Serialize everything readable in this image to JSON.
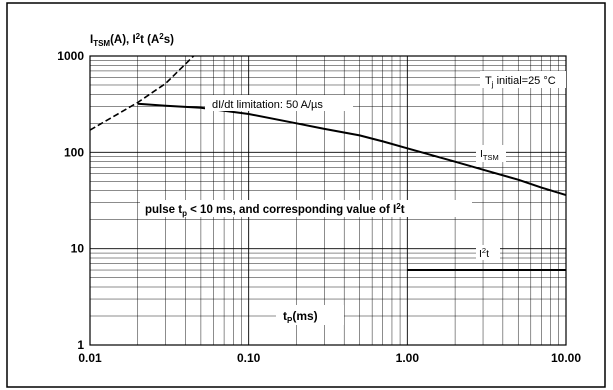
{
  "chart_data": {
    "type": "line",
    "ylabel": {
      "pre1": "I",
      "sub1": "TSM",
      "mid": "(A), I",
      "sup": "2",
      "post": "t (A",
      "sup2": "2",
      "end": "s)"
    },
    "xlabel": {
      "pre": "t",
      "sub": "P",
      "post": "(ms)"
    },
    "x_scale": "log",
    "y_scale": "log",
    "xlim": [
      0.01,
      10
    ],
    "ylim": [
      1,
      1000
    ],
    "x_ticks": [
      0.01,
      0.1,
      1,
      10
    ],
    "x_tick_labels": [
      "0.01",
      "0.10",
      "1.00",
      "10.00"
    ],
    "y_ticks": [
      1,
      10,
      100,
      1000
    ],
    "y_tick_labels": [
      "1",
      "10",
      "100",
      "1000"
    ],
    "grid": true,
    "annotations": {
      "dildt": "dI/dt limitation: 50 A/µs",
      "tj": {
        "pre": "T",
        "sub": "j",
        "post": " initial=25 °C"
      },
      "pulse": {
        "a": "pulse t",
        "a_sub": "p",
        "b": " < 10 ms, and corresponding value of I",
        "b_sup": "2",
        "c": "t"
      },
      "itsm": {
        "pre": "I",
        "sub": "TSM"
      },
      "i2t": {
        "pre": "I",
        "sup": "2",
        "post": "t"
      }
    },
    "series": [
      {
        "name": "I_TSM",
        "style": "solid",
        "x": [
          0.02,
          0.03,
          0.05,
          0.07,
          0.1,
          0.2,
          0.3,
          0.5,
          0.7,
          1.0,
          2.0,
          3.0,
          5.0,
          7.0,
          10.0
        ],
        "y": [
          320,
          305,
          290,
          270,
          250,
          200,
          175,
          150,
          130,
          110,
          80,
          66,
          52,
          43,
          36
        ]
      },
      {
        "name": "I2t",
        "style": "solid",
        "x": [
          1.0,
          2.0,
          5.0,
          10.0
        ],
        "y": [
          6,
          6,
          6,
          6
        ]
      },
      {
        "name": "dI/dt limitation",
        "style": "dashed",
        "x": [
          0.01,
          0.015,
          0.02,
          0.03,
          0.045
        ],
        "y": [
          170,
          250,
          330,
          520,
          1000
        ]
      }
    ]
  }
}
